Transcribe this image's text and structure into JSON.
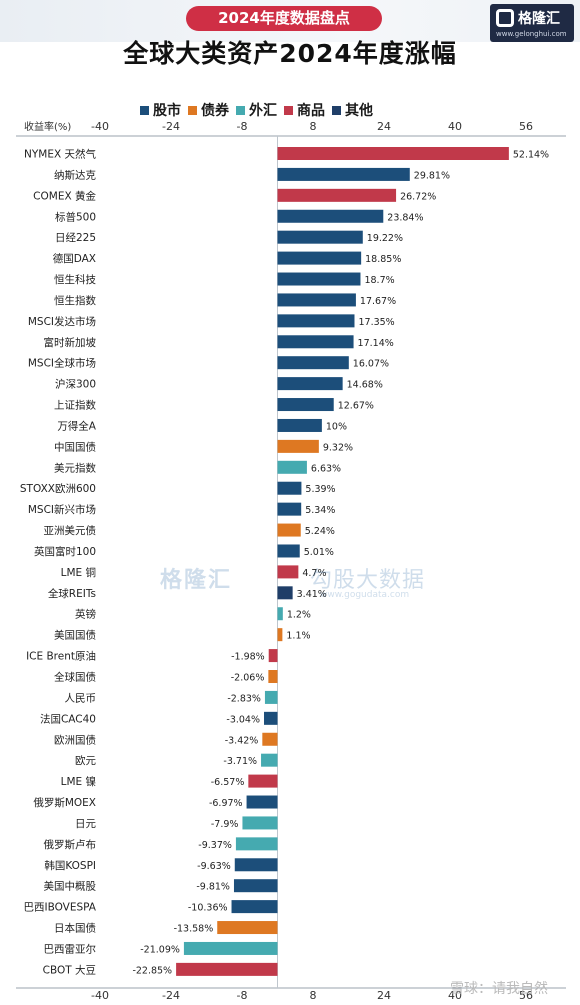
{
  "header": {
    "badge": "2024年度数据盘点",
    "title": "全球大类资产2024年度涨幅",
    "logo": {
      "name": "格隆汇",
      "url": "www.gelonghui.com"
    }
  },
  "watermark": {
    "brand": "格隆汇",
    "product": "勾股大数据",
    "url": "www.gogudata.com"
  },
  "footer_stamp": "雪球：请我自然",
  "colors": {
    "股市": "#1c4e7a",
    "债券": "#de7822",
    "外汇": "#45aab0",
    "商品": "#c1394a",
    "其他": "#1f3e68"
  },
  "chart_data": {
    "type": "bar",
    "orientation": "horizontal",
    "ylabel": "收益率(%)",
    "xlim": [
      -40,
      56
    ],
    "ticks": [
      -40,
      -24,
      -8,
      8,
      24,
      40,
      56
    ],
    "grid": false,
    "legend_position": "top",
    "legend": [
      "股市",
      "债券",
      "外汇",
      "商品",
      "其他"
    ],
    "items": [
      {
        "label": "NYMEX 天然气",
        "value": 52.14,
        "display": "52.14%",
        "category": "商品"
      },
      {
        "label": "纳斯达克",
        "value": 29.81,
        "display": "29.81%",
        "category": "股市"
      },
      {
        "label": "COMEX 黄金",
        "value": 26.72,
        "display": "26.72%",
        "category": "商品"
      },
      {
        "label": "标普500",
        "value": 23.84,
        "display": "23.84%",
        "category": "股市"
      },
      {
        "label": "日经225",
        "value": 19.22,
        "display": "19.22%",
        "category": "股市"
      },
      {
        "label": "德国DAX",
        "value": 18.85,
        "display": "18.85%",
        "category": "股市"
      },
      {
        "label": "恒生科技",
        "value": 18.7,
        "display": "18.7%",
        "category": "股市"
      },
      {
        "label": "恒生指数",
        "value": 17.67,
        "display": "17.67%",
        "category": "股市"
      },
      {
        "label": "MSCI发达市场",
        "value": 17.35,
        "display": "17.35%",
        "category": "股市"
      },
      {
        "label": "富时新加坡",
        "value": 17.14,
        "display": "17.14%",
        "category": "股市"
      },
      {
        "label": "MSCI全球市场",
        "value": 16.07,
        "display": "16.07%",
        "category": "股市"
      },
      {
        "label": "沪深300",
        "value": 14.68,
        "display": "14.68%",
        "category": "股市"
      },
      {
        "label": "上证指数",
        "value": 12.67,
        "display": "12.67%",
        "category": "股市"
      },
      {
        "label": "万得全A",
        "value": 10,
        "display": "10%",
        "category": "股市"
      },
      {
        "label": "中国国债",
        "value": 9.32,
        "display": "9.32%",
        "category": "债券"
      },
      {
        "label": "美元指数",
        "value": 6.63,
        "display": "6.63%",
        "category": "外汇"
      },
      {
        "label": "STOXX欧洲600",
        "value": 5.39,
        "display": "5.39%",
        "category": "股市"
      },
      {
        "label": "MSCI新兴市场",
        "value": 5.34,
        "display": "5.34%",
        "category": "股市"
      },
      {
        "label": "亚洲美元债",
        "value": 5.24,
        "display": "5.24%",
        "category": "债券"
      },
      {
        "label": "英国富时100",
        "value": 5.01,
        "display": "5.01%",
        "category": "股市"
      },
      {
        "label": "LME 铜",
        "value": 4.7,
        "display": "4.7%",
        "category": "商品"
      },
      {
        "label": "全球REITs",
        "value": 3.41,
        "display": "3.41%",
        "category": "其他"
      },
      {
        "label": "英镑",
        "value": 1.2,
        "display": "1.2%",
        "category": "外汇"
      },
      {
        "label": "美国国债",
        "value": 1.1,
        "display": "1.1%",
        "category": "债券"
      },
      {
        "label": "ICE Brent原油",
        "value": -1.98,
        "display": "-1.98%",
        "category": "商品"
      },
      {
        "label": "全球国债",
        "value": -2.06,
        "display": "-2.06%",
        "category": "债券"
      },
      {
        "label": "人民币",
        "value": -2.83,
        "display": "-2.83%",
        "category": "外汇"
      },
      {
        "label": "法国CAC40",
        "value": -3.04,
        "display": "-3.04%",
        "category": "股市"
      },
      {
        "label": "欧洲国债",
        "value": -3.42,
        "display": "-3.42%",
        "category": "债券"
      },
      {
        "label": "欧元",
        "value": -3.71,
        "display": "-3.71%",
        "category": "外汇"
      },
      {
        "label": "LME 镍",
        "value": -6.57,
        "display": "-6.57%",
        "category": "商品"
      },
      {
        "label": "俄罗斯MOEX",
        "value": -6.97,
        "display": "-6.97%",
        "category": "股市"
      },
      {
        "label": "日元",
        "value": -7.9,
        "display": "-7.9%",
        "category": "外汇"
      },
      {
        "label": "俄罗斯卢布",
        "value": -9.37,
        "display": "-9.37%",
        "category": "外汇"
      },
      {
        "label": "韩国KOSPI",
        "value": -9.63,
        "display": "-9.63%",
        "category": "股市"
      },
      {
        "label": "美国中概股",
        "value": -9.81,
        "display": "-9.81%",
        "category": "股市"
      },
      {
        "label": "巴西IBOVESPA",
        "value": -10.36,
        "display": "-10.36%",
        "category": "股市"
      },
      {
        "label": "日本国债",
        "value": -13.58,
        "display": "-13.58%",
        "category": "债券"
      },
      {
        "label": "巴西雷亚尔",
        "value": -21.09,
        "display": "-21.09%",
        "category": "外汇"
      },
      {
        "label": "CBOT 大豆",
        "value": -22.85,
        "display": "-22.85%",
        "category": "商品"
      }
    ]
  }
}
